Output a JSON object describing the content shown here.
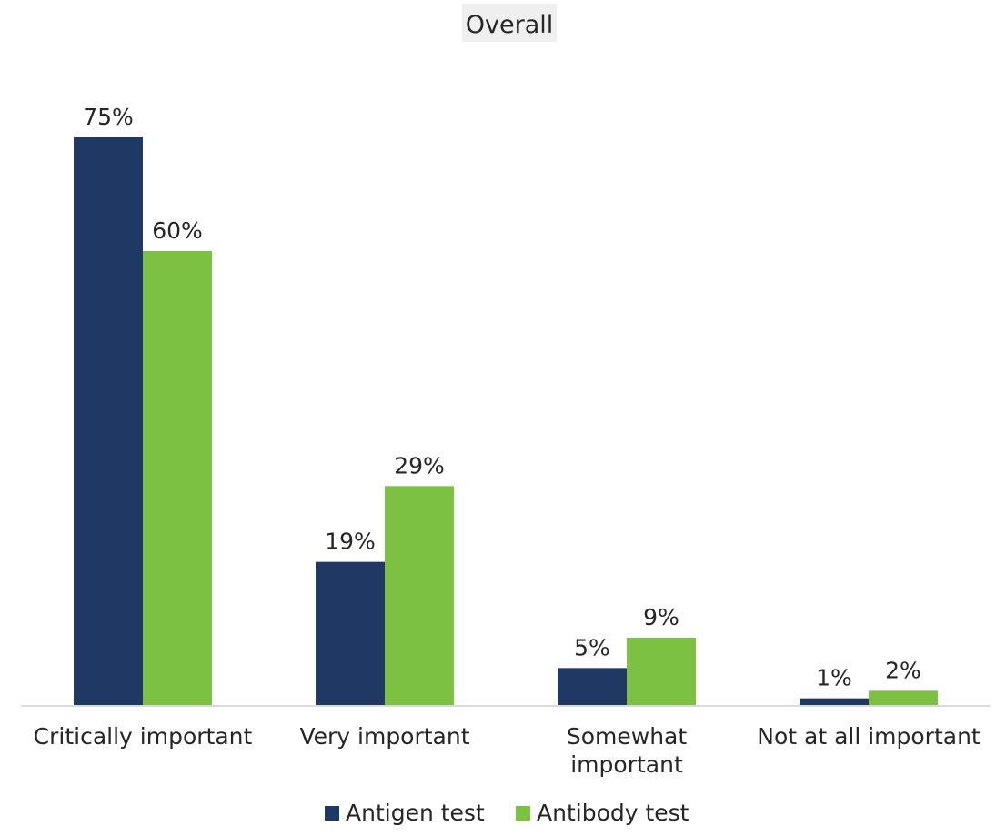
{
  "chart_data": {
    "type": "bar",
    "title": "Overall",
    "categories": [
      "Critically important",
      "Very important",
      "Somewhat important",
      "Not at all important"
    ],
    "category_lines": [
      [
        "Critically important"
      ],
      [
        "Very important"
      ],
      [
        "Somewhat",
        "important"
      ],
      [
        "Not at all important"
      ]
    ],
    "series": [
      {
        "name": "Antigen test",
        "color": "#1f3864",
        "values": [
          75,
          19,
          5,
          1
        ],
        "labels": [
          "75%",
          "19%",
          "5%",
          "1%"
        ]
      },
      {
        "name": "Antibody test",
        "color": "#7cc142",
        "values": [
          60,
          29,
          9,
          2
        ],
        "labels": [
          "60%",
          "29%",
          "9%",
          "2%"
        ]
      }
    ],
    "ylim": [
      0,
      100
    ],
    "grid": false,
    "legend": "bottom",
    "title_background": "#efefef",
    "axis_color": "#d9d9d9",
    "text_color": "#262626"
  }
}
